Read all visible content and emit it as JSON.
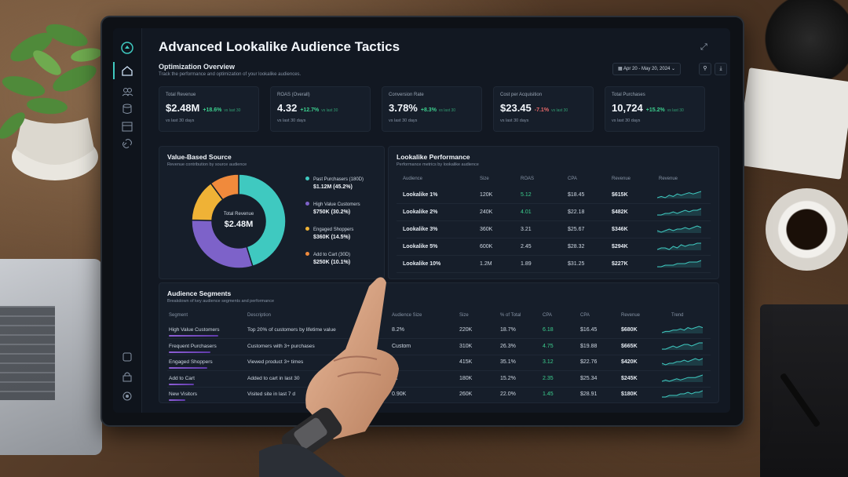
{
  "app": {
    "title": "Advanced Lookalike Audience Tactics",
    "section_title": "Optimization Overview",
    "section_desc": "Track the performance and optimization of your lookalike audiences.",
    "date_range": "Apr 20 - May 20, 2024",
    "filter_icon": "filter-icon",
    "download_icon": "download-icon"
  },
  "sidebar": {
    "icons": [
      "logo-icon",
      "home-icon",
      "users-icon",
      "database-icon",
      "calendar-icon",
      "link-icon",
      "help-icon",
      "lock-icon",
      "settings-icon"
    ]
  },
  "kpis": [
    {
      "label": "Total Revenue",
      "value": "$2.48M",
      "delta": "+18.6%",
      "vs": "vs last 30",
      "foot": "vs last 30 days",
      "negative": false
    },
    {
      "label": "ROAS (Overall)",
      "value": "4.32",
      "delta": "+12.7%",
      "vs": "vs last 30",
      "foot": "vs last 30 days",
      "negative": false
    },
    {
      "label": "Conversion Rate",
      "value": "3.78%",
      "delta": "+8.3%",
      "vs": "vs last 30",
      "foot": "vs last 30 days",
      "negative": false
    },
    {
      "label": "Cost per Acquisition",
      "value": "$23.45",
      "delta": "-7.1%",
      "vs": "vs last 30",
      "foot": "vs last 30 days",
      "negative": true
    },
    {
      "label": "Total Purchases",
      "value": "10,724",
      "delta": "+15.2%",
      "vs": "vs last 30",
      "foot": "vs last 30 days",
      "negative": false
    }
  ],
  "value_source": {
    "title": "Value-Based Source",
    "subtitle": "Revenue contribution by source audience",
    "center_label": "Total Revenue",
    "center_value": "$2.48M",
    "slices": [
      {
        "name": "Past Purchasers (180D)",
        "value_text": "$1.12M (45.2%)",
        "share": 45.2,
        "color": "#3fc9c0"
      },
      {
        "name": "High Value Customers",
        "value_text": "$750K (30.2%)",
        "share": 30.2,
        "color": "#7d62c9"
      },
      {
        "name": "Engaged Shoppers",
        "value_text": "$360K (14.5%)",
        "share": 14.5,
        "color": "#efb236"
      },
      {
        "name": "Add to Cart (30D)",
        "value_text": "$250K (10.1%)",
        "share": 10.1,
        "color": "#f08a3c"
      }
    ]
  },
  "lookalike": {
    "title": "Lookalike Performance",
    "subtitle": "Performance metrics by lookalike audience",
    "headers": [
      "Audience",
      "Size",
      "ROAS",
      "CPA",
      "Revenue",
      "Revenue"
    ],
    "rows": [
      {
        "audience": "Lookalike 1%",
        "size": "120K",
        "roas": "5.12",
        "cpa": "$18.45",
        "revenue": "$615K",
        "roas_green": true,
        "trend": [
          3,
          4,
          3,
          5,
          4,
          6,
          5,
          6,
          7,
          6,
          7,
          8
        ]
      },
      {
        "audience": "Lookalike 2%",
        "size": "240K",
        "roas": "4.01",
        "cpa": "$22.18",
        "revenue": "$482K",
        "roas_green": true,
        "trend": [
          3,
          3,
          4,
          4,
          5,
          4,
          5,
          6,
          5,
          6,
          6,
          7
        ]
      },
      {
        "audience": "Lookalike 3%",
        "size": "360K",
        "roas": "3.21",
        "cpa": "$25.67",
        "revenue": "$346K",
        "roas_green": false,
        "trend": [
          4,
          3,
          4,
          5,
          4,
          5,
          5,
          6,
          5,
          6,
          7,
          6
        ]
      },
      {
        "audience": "Lookalike 5%",
        "size": "600K",
        "roas": "2.45",
        "cpa": "$28.32",
        "revenue": "$294K",
        "roas_green": false,
        "trend": [
          3,
          4,
          4,
          3,
          5,
          4,
          6,
          5,
          6,
          6,
          7,
          7
        ]
      },
      {
        "audience": "Lookalike 10%",
        "size": "1.2M",
        "roas": "1.89",
        "cpa": "$31.25",
        "revenue": "$227K",
        "roas_green": false,
        "trend": [
          3,
          3,
          4,
          4,
          4,
          5,
          5,
          5,
          6,
          6,
          6,
          7
        ]
      }
    ]
  },
  "segments": {
    "title": "Audience Segments",
    "subtitle": "Breakdown of key audience segments and performance",
    "headers": [
      "Segment",
      "Description",
      "Audience Size",
      "Size",
      "% of Total",
      "CPA",
      "CPA",
      "Revenue",
      "Trend"
    ],
    "rows": [
      {
        "segment": "High Value Customers",
        "description": "Top 20% of customers by lifetime value",
        "audience": "8.2%",
        "size": "220K",
        "pct": "18.7%",
        "roas": "6.18",
        "cpa": "$16.45",
        "revenue": "$680K",
        "bar": 0.9,
        "trend": [
          3,
          4,
          4,
          5,
          5,
          6,
          5,
          7,
          6,
          7,
          8,
          7
        ]
      },
      {
        "segment": "Frequent Purchasers",
        "description": "Customers with 3+ purchases",
        "audience": "Custom",
        "size": "310K",
        "pct": "26.3%",
        "roas": "4.75",
        "cpa": "$19.88",
        "revenue": "$665K",
        "bar": 0.75,
        "trend": [
          3,
          3,
          4,
          5,
          4,
          5,
          6,
          6,
          5,
          6,
          7,
          7
        ]
      },
      {
        "segment": "Engaged Shoppers",
        "description": "Viewed product 3+ times",
        "audience": "",
        "size": "415K",
        "pct": "35.1%",
        "roas": "3.12",
        "cpa": "$22.76",
        "revenue": "$420K",
        "bar": 0.7,
        "trend": [
          4,
          3,
          4,
          4,
          5,
          5,
          6,
          5,
          6,
          7,
          6,
          7
        ]
      },
      {
        "segment": "Add to Cart",
        "description": "Added to cart in last 30",
        "audience": "0k",
        "size": "180K",
        "pct": "15.2%",
        "roas": "2.35",
        "cpa": "$25.34",
        "revenue": "$245K",
        "bar": 0.45,
        "trend": [
          3,
          4,
          3,
          4,
          5,
          4,
          5,
          6,
          6,
          6,
          7,
          8
        ]
      },
      {
        "segment": "New Visitors",
        "description": "Visited site in last 7 d",
        "audience": "0.90K",
        "size": "260K",
        "pct": "22.0%",
        "roas": "1.45",
        "cpa": "$28.91",
        "revenue": "$180K",
        "bar": 0.3,
        "trend": [
          3,
          3,
          4,
          4,
          4,
          5,
          5,
          6,
          5,
          6,
          6,
          7
        ]
      }
    ]
  }
}
